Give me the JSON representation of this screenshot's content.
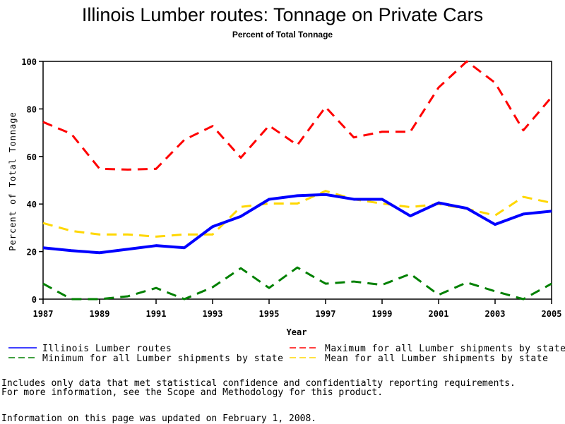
{
  "chart_data": {
    "type": "line",
    "title": "Illinois Lumber routes: Tonnage on Private Cars",
    "subtitle": "Percent of Total Tonnage",
    "xlabel": "Year",
    "ylabel": "Percent of Total Tonnage",
    "xlim": [
      1987,
      2005
    ],
    "ylim": [
      0,
      100
    ],
    "x_ticks": [
      1987,
      1989,
      1991,
      1993,
      1995,
      1997,
      1999,
      2001,
      2003,
      2005
    ],
    "y_ticks": [
      0,
      20,
      40,
      60,
      80,
      100
    ],
    "grid": false,
    "legend_position": "bottom",
    "x": [
      1987,
      1988,
      1989,
      1990,
      1991,
      1992,
      1993,
      1994,
      1995,
      1996,
      1997,
      1998,
      1999,
      2000,
      2001,
      2002,
      2003,
      2004,
      2005
    ],
    "series": [
      {
        "name": "Illinois Lumber routes",
        "color": "#0000ff",
        "style": "solid",
        "values": [
          21.6,
          20.4,
          19.5,
          21.0,
          22.5,
          21.6,
          30.5,
          34.8,
          42.0,
          43.5,
          44.0,
          42.0,
          42.0,
          35.0,
          40.5,
          38.2,
          31.4,
          35.8,
          37.0
        ]
      },
      {
        "name": "Maximum for all Lumber shipments by state",
        "color": "#ff0000",
        "style": "dashed",
        "values": [
          74.5,
          69.5,
          54.8,
          54.5,
          54.8,
          67.0,
          72.8,
          59.5,
          73.0,
          64.8,
          80.8,
          68.0,
          70.4,
          70.4,
          89.0,
          100.0,
          91.0,
          71.0,
          85.0
        ]
      },
      {
        "name": "Minimum for all Lumber shipments by state",
        "color": "#008000",
        "style": "dashed",
        "values": [
          6.5,
          0.0,
          0.0,
          1.2,
          4.7,
          0.0,
          5.0,
          13.0,
          4.7,
          13.3,
          6.5,
          7.4,
          6.0,
          10.6,
          1.8,
          7.0,
          3.3,
          0.0,
          6.5
        ]
      },
      {
        "name": "Mean for all Lumber shipments by state",
        "color": "#ffd700",
        "style": "dashed",
        "values": [
          32.0,
          28.7,
          27.2,
          27.2,
          26.3,
          27.2,
          27.2,
          38.8,
          40.2,
          40.2,
          45.5,
          42.0,
          40.2,
          38.7,
          40.0,
          38.0,
          35.2,
          43.0,
          40.5
        ]
      }
    ]
  },
  "notes": {
    "line1": "Includes only data that met statistical confidence and confidentialty reporting requirements.",
    "line2": "For more information, see the Scope and Methodology for this product.",
    "updated": "Information on this page was updated on February 1, 2008."
  }
}
